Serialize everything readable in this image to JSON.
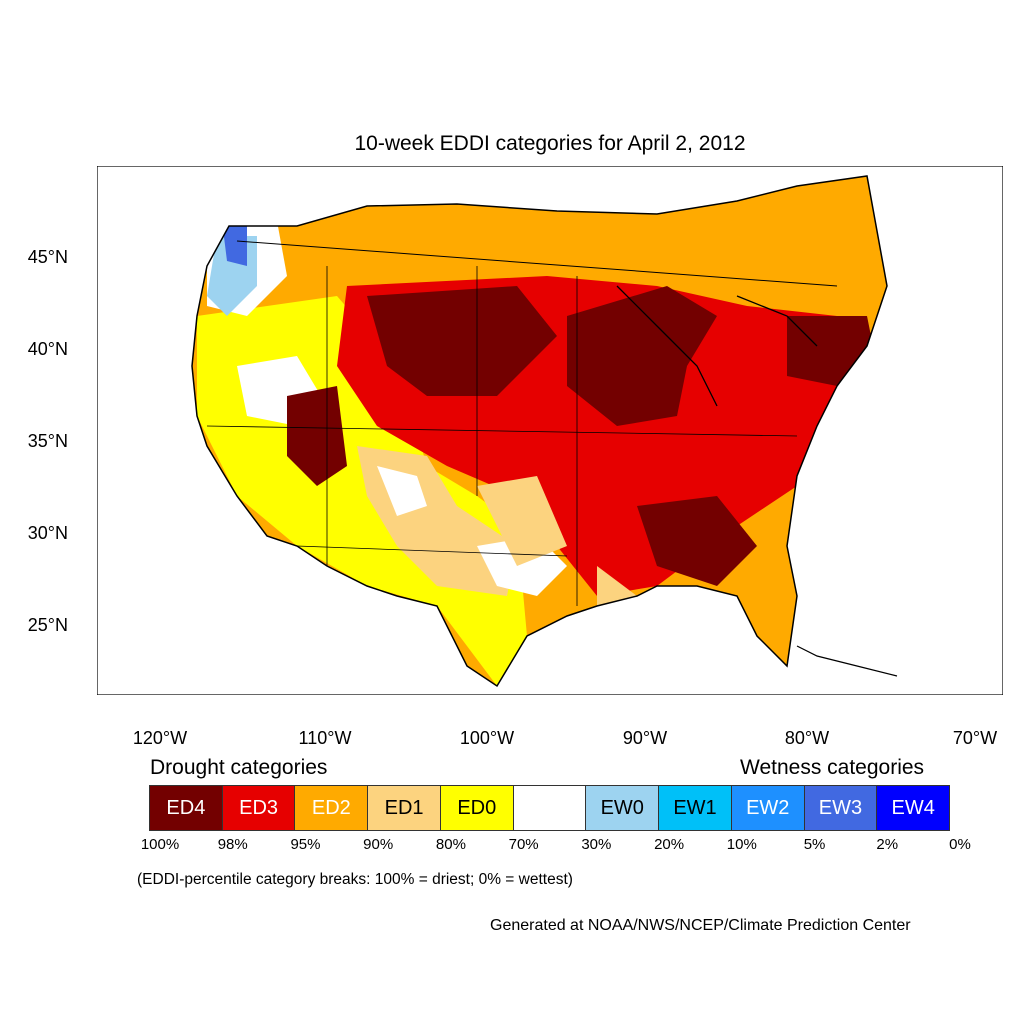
{
  "title": "10-week EDDI categories for April 2, 2012",
  "lat_labels": [
    "45°N",
    "40°N",
    "35°N",
    "30°N",
    "25°N"
  ],
  "lon_labels": [
    "120°W",
    "110°W",
    "100°W",
    "90°W",
    "80°W",
    "70°W"
  ],
  "legend": {
    "drought_heading": "Drought categories",
    "wetness_heading": "Wetness categories",
    "categories": [
      {
        "label": "ED4",
        "color": "#730000",
        "text_color": "#ffffff"
      },
      {
        "label": "ED3",
        "color": "#e60000",
        "text_color": "#ffffff"
      },
      {
        "label": "ED2",
        "color": "#ffaa00",
        "text_color": "#ffffff"
      },
      {
        "label": "ED1",
        "color": "#fcd37f",
        "text_color": "#000000"
      },
      {
        "label": "ED0",
        "color": "#ffff00",
        "text_color": "#000000"
      },
      {
        "label": "",
        "color": "#ffffff",
        "text_color": "#000000"
      },
      {
        "label": "EW0",
        "color": "#9dd3f0",
        "text_color": "#000000"
      },
      {
        "label": "EW1",
        "color": "#00c0f8",
        "text_color": "#000000"
      },
      {
        "label": "EW2",
        "color": "#1e90ff",
        "text_color": "#ffffff"
      },
      {
        "label": "EW3",
        "color": "#4169e1",
        "text_color": "#ffffff"
      },
      {
        "label": "EW4",
        "color": "#0000ff",
        "text_color": "#ffffff"
      }
    ],
    "breaks": [
      "100%",
      "98%",
      "95%",
      "90%",
      "80%",
      "70%",
      "30%",
      "20%",
      "10%",
      "5%",
      "2%",
      "0%"
    ]
  },
  "note": "(EDDI-percentile category breaks: 100% = driest; 0% = wettest)",
  "credit": "Generated at NOAA/NWS/NCEP/Climate Prediction Center"
}
